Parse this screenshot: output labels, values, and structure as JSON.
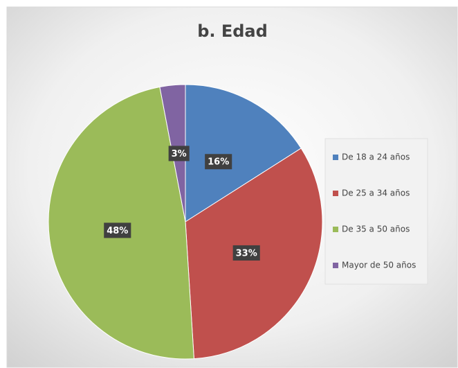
{
  "chart_data": {
    "type": "pie",
    "title": "b. Edad",
    "categories": [
      "De 18 a 24 años",
      "De 25 a 34 años",
      "De 35 a 50 años",
      "Mayor de 50 años"
    ],
    "values": [
      16,
      33,
      48,
      3
    ],
    "value_labels": [
      "16%",
      "33%",
      "48%",
      "3%"
    ],
    "colors": [
      "#4f81bd",
      "#c0504d",
      "#9bbb59",
      "#8064a2"
    ],
    "legend": "right"
  }
}
